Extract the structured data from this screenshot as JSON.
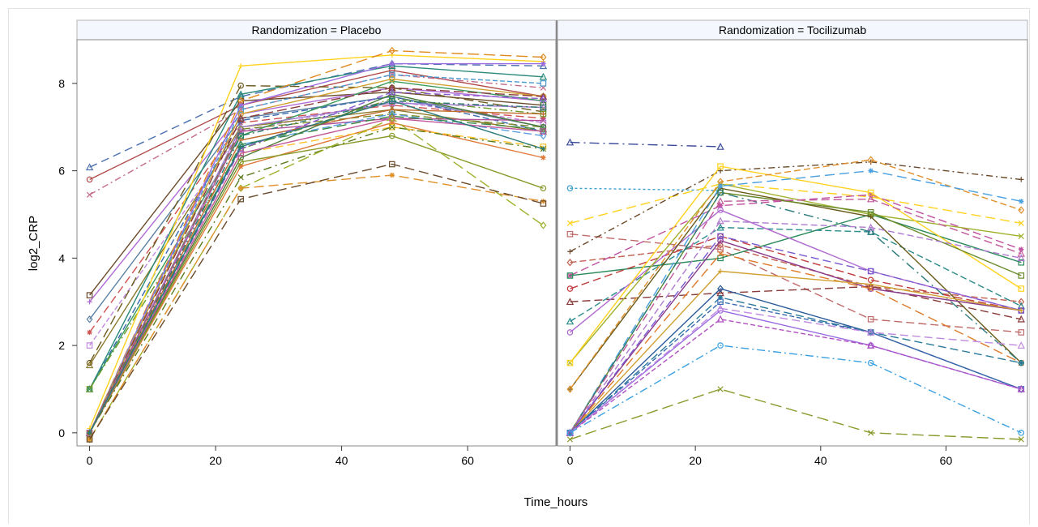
{
  "chart_data": {
    "type": "line",
    "xlabel": "Time_hours",
    "ylabel": "log2_CRP",
    "ylim": [
      -0.3,
      9.0
    ],
    "y_ticks": [
      "0",
      "2",
      "4",
      "6",
      "8"
    ],
    "panels": [
      {
        "title": "Randomization = Placebo",
        "xlim": [
          -2,
          74
        ],
        "x_ticks": [
          "0",
          "20",
          "40",
          "60"
        ],
        "x": [
          0,
          24,
          48,
          72
        ],
        "series": [
          {
            "color": "#4a6fb0",
            "dash": "10 6",
            "values": [
              6.08,
              7.7,
              8.45,
              8.4
            ]
          },
          {
            "color": "#b04a4a",
            "dash": "",
            "values": [
              5.8,
              7.5,
              8.3,
              7.7
            ]
          },
          {
            "color": "#c46a8a",
            "dash": "8 4 2 4",
            "values": [
              5.45,
              7.4,
              8.2,
              7.9
            ]
          },
          {
            "color": "#6b4a2b",
            "dash": "",
            "values": [
              3.15,
              7.6,
              7.8,
              7.5
            ]
          },
          {
            "color": "#b06bd6",
            "dash": "",
            "values": [
              3.0,
              7.3,
              7.9,
              7.6
            ]
          },
          {
            "color": "#5a7fa0",
            "dash": "",
            "values": [
              2.6,
              7.2,
              7.7,
              7.0
            ]
          },
          {
            "color": "#d05050",
            "dash": "10 5",
            "values": [
              2.3,
              7.1,
              7.5,
              7.2
            ]
          },
          {
            "color": "#c08ae0",
            "dash": "6 3",
            "values": [
              2.0,
              6.9,
              7.6,
              7.1
            ]
          },
          {
            "color": "#6b5a1e",
            "dash": "12 6",
            "values": [
              1.6,
              7.95,
              7.9,
              7.35
            ]
          },
          {
            "color": "#8a7a2a",
            "dash": "",
            "values": [
              1.55,
              7.0,
              7.4,
              6.9
            ]
          },
          {
            "color": "#2a8a7a",
            "dash": "",
            "values": [
              1.0,
              7.75,
              8.4,
              8.15
            ]
          },
          {
            "color": "#3a6ab0",
            "dash": "8 4",
            "values": [
              1.0,
              7.15,
              7.7,
              6.9
            ]
          },
          {
            "color": "#3a9a5a",
            "dash": "",
            "values": [
              1.0,
              6.8,
              8.05,
              7.6
            ]
          },
          {
            "color": "#6a9a2a",
            "dash": "10 4 2 4",
            "values": [
              1.0,
              6.5,
              7.65,
              7.3
            ]
          },
          {
            "color": "#ffd21e",
            "dash": "",
            "values": [
              0.1,
              8.4,
              8.65,
              8.5
            ]
          },
          {
            "color": "#e08a1e",
            "dash": "14 6",
            "values": [
              0.0,
              7.6,
              8.75,
              8.6
            ]
          },
          {
            "color": "#9a6ae0",
            "dash": "",
            "values": [
              0.0,
              7.5,
              8.45,
              8.45
            ]
          },
          {
            "color": "#4a9ad0",
            "dash": "6 3",
            "values": [
              0.0,
              7.4,
              8.2,
              8.0
            ]
          },
          {
            "color": "#d0a030",
            "dash": "",
            "values": [
              0.0,
              7.3,
              8.1,
              7.7
            ]
          },
          {
            "color": "#8a3a3a",
            "dash": "12 5",
            "values": [
              0.0,
              7.2,
              7.9,
              7.7
            ]
          },
          {
            "color": "#a07ad0",
            "dash": "",
            "values": [
              0.0,
              7.0,
              7.55,
              7.45
            ]
          },
          {
            "color": "#7a8a2a",
            "dash": "10 5",
            "values": [
              0.0,
              6.95,
              7.3,
              7.0
            ]
          },
          {
            "color": "#b0509a",
            "dash": "",
            "values": [
              0.0,
              6.9,
              7.2,
              7.15
            ]
          },
          {
            "color": "#2a7a6a",
            "dash": "8 4 2 4",
            "values": [
              0.0,
              6.8,
              7.6,
              7.45
            ]
          },
          {
            "color": "#c06a2a",
            "dash": "",
            "values": [
              0.0,
              6.7,
              7.4,
              7.3
            ]
          },
          {
            "color": "#5aa0e0",
            "dash": "10 4",
            "values": [
              0.0,
              6.6,
              7.3,
              6.8
            ]
          },
          {
            "color": "#e07a3a",
            "dash": "",
            "values": [
              0.0,
              6.1,
              7.1,
              6.3
            ]
          },
          {
            "color": "#ffc22a",
            "dash": "10 5",
            "values": [
              0.0,
              6.4,
              7.0,
              6.55
            ]
          },
          {
            "color": "#4a7a3a",
            "dash": "",
            "values": [
              0.0,
              6.3,
              7.75,
              7.0
            ]
          },
          {
            "color": "#8a5ad0",
            "dash": "8 4",
            "values": [
              0.0,
              6.5,
              7.8,
              7.65
            ]
          },
          {
            "color": "#3a8a4a",
            "dash": "12 6",
            "values": [
              0.0,
              6.6,
              7.25,
              6.95
            ]
          },
          {
            "color": "#8a9a2a",
            "dash": "",
            "values": [
              0.0,
              6.2,
              6.8,
              5.6
            ]
          },
          {
            "color": "#5a7a1a",
            "dash": "10 5 2 5",
            "values": [
              0.0,
              5.85,
              7.0,
              6.5
            ]
          },
          {
            "color": "#c05a9a",
            "dash": "",
            "values": [
              0.0,
              6.4,
              7.2,
              6.9
            ]
          },
          {
            "color": "#2a7a7a",
            "dash": "",
            "values": [
              0.0,
              6.55,
              7.6,
              6.5
            ]
          },
          {
            "color": "#a0b02a",
            "dash": "14 6",
            "values": [
              -0.15,
              5.6,
              7.2,
              4.75
            ]
          },
          {
            "color": "#e0902a",
            "dash": "12 6",
            "values": [
              -0.15,
              5.6,
              5.9,
              5.3
            ]
          },
          {
            "color": "#6a4a2a",
            "dash": "12 6",
            "values": [
              -0.15,
              5.35,
              6.15,
              5.25
            ]
          }
        ]
      },
      {
        "title": "Randomization = Tocilizumab",
        "xlim": [
          -2,
          73
        ],
        "x_ticks": [
          "0",
          "20",
          "40",
          "60"
        ],
        "x": [
          0,
          24,
          48,
          72
        ],
        "series": [
          {
            "color": "#3a4a9a",
            "dash": "12 5 2 5",
            "values": [
              6.65,
              6.55,
              null,
              null
            ]
          },
          {
            "color": "#3aa0d0",
            "dash": "3 3",
            "values": [
              5.6,
              5.55,
              null,
              null
            ]
          },
          {
            "color": "#ffd21e",
            "dash": "12 6",
            "values": [
              4.8,
              5.7,
              5.4,
              4.8
            ]
          },
          {
            "color": "#c06a6a",
            "dash": "10 5",
            "values": [
              4.55,
              4.2,
              2.6,
              2.3
            ]
          },
          {
            "color": "#6b4a2a",
            "dash": "8 4 2 4",
            "values": [
              4.15,
              6.0,
              6.2,
              5.8
            ]
          },
          {
            "color": "#c06050",
            "dash": "8 4",
            "values": [
              3.9,
              4.3,
              3.35,
              3.0
            ]
          },
          {
            "color": "#c050a0",
            "dash": "10 5",
            "values": [
              3.6,
              5.2,
              5.45,
              4.2
            ]
          },
          {
            "color": "#2a8a5a",
            "dash": "",
            "values": [
              3.6,
              4.0,
              5.0,
              3.9
            ]
          },
          {
            "color": "#c03a3a",
            "dash": "10 5",
            "values": [
              3.3,
              4.5,
              3.5,
              2.8
            ]
          },
          {
            "color": "#8a3a3a",
            "dash": "10 5",
            "values": [
              3.0,
              3.2,
              3.35,
              2.6
            ]
          },
          {
            "color": "#2a8a8a",
            "dash": "8 4",
            "values": [
              2.55,
              4.7,
              4.6,
              2.9
            ]
          },
          {
            "color": "#b06ad0",
            "dash": "",
            "values": [
              2.3,
              5.1,
              3.7,
              2.8
            ]
          },
          {
            "color": "#a0b02a",
            "dash": "",
            "values": [
              1.6,
              5.7,
              5.0,
              4.5
            ]
          },
          {
            "color": "#ffd21e",
            "dash": "",
            "values": [
              1.6,
              6.1,
              5.5,
              3.3
            ]
          },
          {
            "color": "#6a5a1a",
            "dash": "",
            "values": [
              1.0,
              5.6,
              4.95,
              1.6
            ]
          },
          {
            "color": "#e0902a",
            "dash": "8 4",
            "values": [
              1.0,
              5.75,
              6.25,
              5.1
            ]
          },
          {
            "color": "#4aa0e0",
            "dash": "12 6",
            "values": [
              0.0,
              5.65,
              6.0,
              5.3
            ]
          },
          {
            "color": "#6a8a2a",
            "dash": "",
            "values": [
              0.0,
              5.5,
              5.05,
              3.6
            ]
          },
          {
            "color": "#2a7a7a",
            "dash": "12 5 2 5",
            "values": [
              0.0,
              5.5,
              4.6,
              1.6
            ]
          },
          {
            "color": "#c05a9a",
            "dash": "10 5",
            "values": [
              0.0,
              5.3,
              5.35,
              4.1
            ]
          },
          {
            "color": "#b07ad0",
            "dash": "8 4",
            "values": [
              0.0,
              4.85,
              4.7,
              4.0
            ]
          },
          {
            "color": "#8a3a8a",
            "dash": "",
            "values": [
              0.0,
              4.4,
              3.3,
              2.8
            ]
          },
          {
            "color": "#e07a2a",
            "dash": "12 6",
            "values": [
              0.0,
              4.1,
              3.3,
              1.6
            ]
          },
          {
            "color": "#7a5ad0",
            "dash": "10 5",
            "values": [
              0.0,
              4.5,
              3.7,
              2.8
            ]
          },
          {
            "color": "#d0a030",
            "dash": "",
            "values": [
              0.0,
              3.7,
              3.4,
              2.8
            ]
          },
          {
            "color": "#2a5a9a",
            "dash": "",
            "values": [
              0.0,
              3.3,
              2.3,
              1.0
            ]
          },
          {
            "color": "#2a7a9a",
            "dash": "10 5",
            "values": [
              0.0,
              3.1,
              2.3,
              1.6
            ]
          },
          {
            "color": "#3a6ab0",
            "dash": "6 3",
            "values": [
              0.0,
              3.0,
              2.3,
              1.0
            ]
          },
          {
            "color": "#9a6ae0",
            "dash": "",
            "values": [
              0.0,
              2.8,
              2.0,
              1.0
            ]
          },
          {
            "color": "#c08ae0",
            "dash": "10 5",
            "values": [
              0.0,
              2.85,
              2.3,
              2.0
            ]
          },
          {
            "color": "#b050c0",
            "dash": "6 3",
            "values": [
              0.0,
              2.6,
              2.0,
              1.0
            ]
          },
          {
            "color": "#3aa0e0",
            "dash": "10 4 2 4",
            "values": [
              0.0,
              2.0,
              1.6,
              0.0
            ]
          },
          {
            "color": "#8a9a2a",
            "dash": "14 6",
            "values": [
              -0.15,
              1.0,
              0.0,
              -0.15
            ]
          }
        ]
      }
    ]
  }
}
